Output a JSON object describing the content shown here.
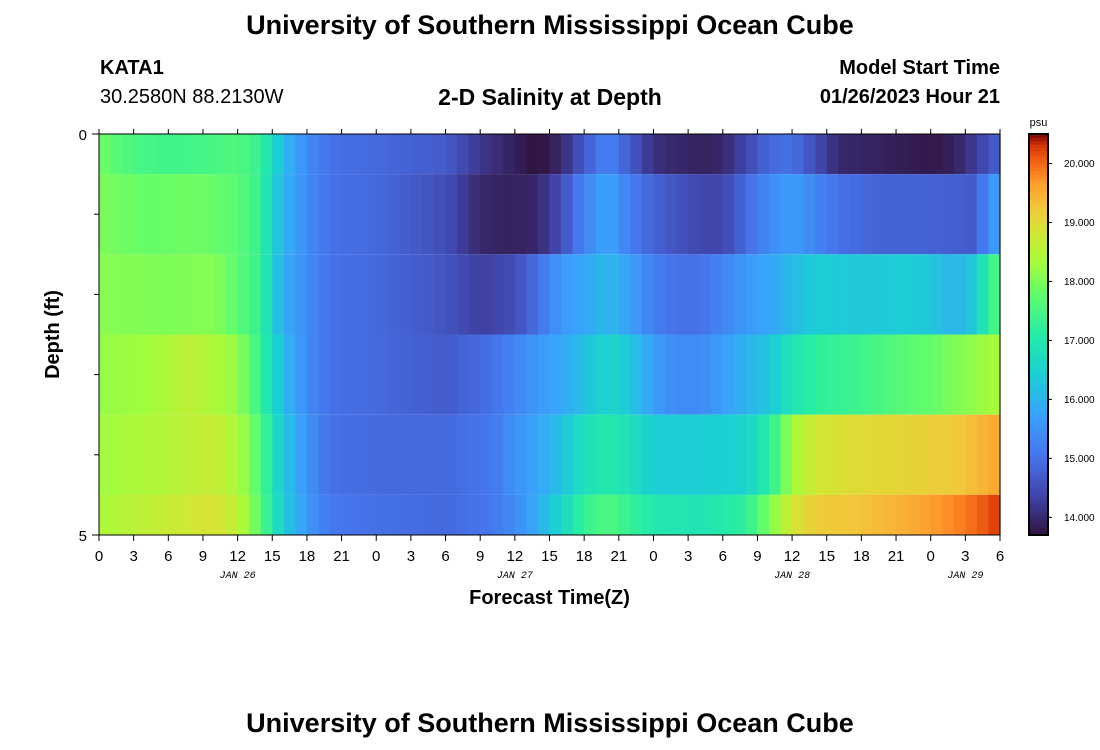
{
  "header": {
    "title": "University of Southern Mississippi Ocean Cube",
    "station_id": "KATA1",
    "station_coords": "30.2580N  88.2130W",
    "chart_subtitle": "2-D Salinity at Depth",
    "model_start_label": "Model Start Time",
    "model_start_value": "01/26/2023 Hour 21"
  },
  "footer": {
    "title": "University of Southern Mississippi Ocean Cube"
  },
  "chart_data": {
    "type": "heatmap",
    "title": "2-D Salinity at Depth",
    "xlabel": "Forecast Time(Z)",
    "ylabel": "Depth (ft)",
    "units": "psu",
    "y_tick_labels": [
      "0",
      "5"
    ],
    "ylim": [
      0,
      5
    ],
    "x_hours_range": [
      0,
      78
    ],
    "x_tick_labels": [
      "0",
      "3",
      "6",
      "9",
      "12",
      "15",
      "18",
      "21",
      "0",
      "3",
      "6",
      "9",
      "12",
      "15",
      "18",
      "21",
      "0",
      "3",
      "6",
      "9",
      "12",
      "15",
      "18",
      "21",
      "0",
      "3",
      "6"
    ],
    "date_labels": [
      {
        "label": "JAN 26",
        "hour": 12
      },
      {
        "label": "JAN 27",
        "hour": 36
      },
      {
        "label": "JAN 28",
        "hour": 60
      },
      {
        "label": "JAN 29",
        "hour": 75
      }
    ],
    "colorbar": {
      "min": 13.7,
      "max": 20.5,
      "ticks": [
        "14.000",
        "15.000",
        "16.000",
        "17.000",
        "18.000",
        "19.000",
        "20.000"
      ]
    },
    "depth_layers": [
      {
        "depth_from": 0.0,
        "depth_to": 0.5,
        "knots": [
          [
            0,
            17.9
          ],
          [
            2,
            17.6
          ],
          [
            6,
            17.4
          ],
          [
            10,
            17.5
          ],
          [
            12,
            17.6
          ],
          [
            14,
            17.3
          ],
          [
            15,
            16.7
          ],
          [
            16,
            16.1
          ],
          [
            18,
            15.4
          ],
          [
            20,
            15.0
          ],
          [
            24,
            14.9
          ],
          [
            30,
            14.7
          ],
          [
            33,
            14.2
          ],
          [
            36,
            13.9
          ],
          [
            38,
            13.7
          ],
          [
            40,
            14.0
          ],
          [
            42,
            14.7
          ],
          [
            44,
            15.3
          ],
          [
            46,
            14.7
          ],
          [
            48,
            14.1
          ],
          [
            52,
            13.9
          ],
          [
            54,
            14.0
          ],
          [
            56,
            14.4
          ],
          [
            58,
            14.9
          ],
          [
            60,
            15.0
          ],
          [
            62,
            14.5
          ],
          [
            64,
            14.0
          ],
          [
            68,
            13.9
          ],
          [
            72,
            13.8
          ],
          [
            74,
            13.9
          ],
          [
            76,
            14.3
          ],
          [
            78,
            14.8
          ]
        ]
      },
      {
        "depth_from": 0.5,
        "depth_to": 1.5,
        "knots": [
          [
            0,
            18.0
          ],
          [
            4,
            17.8
          ],
          [
            8,
            17.9
          ],
          [
            12,
            17.7
          ],
          [
            14,
            17.3
          ],
          [
            15,
            16.5
          ],
          [
            16,
            16.0
          ],
          [
            18,
            15.4
          ],
          [
            20,
            15.0
          ],
          [
            24,
            14.9
          ],
          [
            30,
            14.5
          ],
          [
            33,
            14.0
          ],
          [
            36,
            13.9
          ],
          [
            38,
            14.0
          ],
          [
            40,
            14.5
          ],
          [
            42,
            15.3
          ],
          [
            44,
            15.8
          ],
          [
            46,
            15.2
          ],
          [
            48,
            14.8
          ],
          [
            52,
            14.4
          ],
          [
            54,
            14.4
          ],
          [
            56,
            14.9
          ],
          [
            58,
            15.4
          ],
          [
            60,
            15.7
          ],
          [
            62,
            15.3
          ],
          [
            64,
            15.0
          ],
          [
            68,
            14.8
          ],
          [
            72,
            14.8
          ],
          [
            76,
            14.7
          ],
          [
            77,
            15.5
          ],
          [
            78,
            15.7
          ]
        ]
      },
      {
        "depth_from": 1.5,
        "depth_to": 2.5,
        "knots": [
          [
            0,
            18.1
          ],
          [
            6,
            18.0
          ],
          [
            10,
            18.1
          ],
          [
            12,
            17.7
          ],
          [
            14,
            17.3
          ],
          [
            15,
            16.5
          ],
          [
            16,
            15.9
          ],
          [
            18,
            15.4
          ],
          [
            20,
            15.0
          ],
          [
            24,
            14.9
          ],
          [
            30,
            14.6
          ],
          [
            33,
            14.3
          ],
          [
            36,
            14.5
          ],
          [
            38,
            15.0
          ],
          [
            40,
            15.6
          ],
          [
            42,
            15.8
          ],
          [
            44,
            16.1
          ],
          [
            46,
            15.7
          ],
          [
            48,
            15.2
          ],
          [
            50,
            15.0
          ],
          [
            52,
            15.0
          ],
          [
            54,
            15.3
          ],
          [
            56,
            15.6
          ],
          [
            58,
            15.8
          ],
          [
            60,
            16.1
          ],
          [
            62,
            16.4
          ],
          [
            66,
            16.3
          ],
          [
            70,
            16.4
          ],
          [
            72,
            16.3
          ],
          [
            74,
            16.0
          ],
          [
            76,
            16.4
          ],
          [
            77,
            17.3
          ],
          [
            78,
            17.6
          ]
        ]
      },
      {
        "depth_from": 2.5,
        "depth_to": 3.5,
        "knots": [
          [
            0,
            18.2
          ],
          [
            4,
            18.3
          ],
          [
            8,
            18.6
          ],
          [
            12,
            18.2
          ],
          [
            14,
            17.3
          ],
          [
            15,
            16.7
          ],
          [
            16,
            16.1
          ],
          [
            18,
            15.4
          ],
          [
            20,
            15.0
          ],
          [
            24,
            14.9
          ],
          [
            30,
            14.7
          ],
          [
            34,
            15.0
          ],
          [
            38,
            15.6
          ],
          [
            40,
            15.8
          ],
          [
            42,
            16.2
          ],
          [
            44,
            16.6
          ],
          [
            46,
            16.3
          ],
          [
            48,
            15.7
          ],
          [
            50,
            15.4
          ],
          [
            52,
            15.4
          ],
          [
            54,
            15.7
          ],
          [
            56,
            16.0
          ],
          [
            58,
            16.3
          ],
          [
            60,
            16.9
          ],
          [
            62,
            17.2
          ],
          [
            66,
            17.4
          ],
          [
            70,
            17.7
          ],
          [
            72,
            17.8
          ],
          [
            74,
            18.0
          ],
          [
            76,
            18.2
          ],
          [
            78,
            18.4
          ]
        ]
      },
      {
        "depth_from": 3.5,
        "depth_to": 4.5,
        "knots": [
          [
            0,
            18.3
          ],
          [
            6,
            18.5
          ],
          [
            10,
            18.7
          ],
          [
            12,
            18.4
          ],
          [
            14,
            17.6
          ],
          [
            15,
            16.9
          ],
          [
            16,
            16.3
          ],
          [
            18,
            15.5
          ],
          [
            20,
            15.0
          ],
          [
            24,
            14.9
          ],
          [
            30,
            14.9
          ],
          [
            34,
            15.1
          ],
          [
            36,
            15.5
          ],
          [
            38,
            15.8
          ],
          [
            40,
            16.2
          ],
          [
            42,
            16.8
          ],
          [
            44,
            17.0
          ],
          [
            46,
            16.8
          ],
          [
            48,
            16.4
          ],
          [
            52,
            16.4
          ],
          [
            56,
            16.5
          ],
          [
            58,
            17.1
          ],
          [
            60,
            18.3
          ],
          [
            62,
            18.8
          ],
          [
            66,
            19.0
          ],
          [
            70,
            19.1
          ],
          [
            74,
            19.2
          ],
          [
            76,
            19.4
          ],
          [
            78,
            19.6
          ]
        ]
      },
      {
        "depth_from": 4.5,
        "depth_to": 5.0,
        "knots": [
          [
            0,
            18.4
          ],
          [
            6,
            18.7
          ],
          [
            10,
            18.9
          ],
          [
            12,
            18.6
          ],
          [
            14,
            17.7
          ],
          [
            15,
            17.0
          ],
          [
            16,
            16.4
          ],
          [
            18,
            15.6
          ],
          [
            20,
            15.1
          ],
          [
            24,
            15.0
          ],
          [
            30,
            14.9
          ],
          [
            34,
            15.1
          ],
          [
            36,
            15.4
          ],
          [
            38,
            15.9
          ],
          [
            40,
            16.6
          ],
          [
            42,
            17.3
          ],
          [
            44,
            17.6
          ],
          [
            46,
            17.3
          ],
          [
            48,
            17.0
          ],
          [
            52,
            16.9
          ],
          [
            56,
            17.2
          ],
          [
            58,
            18.0
          ],
          [
            60,
            18.8
          ],
          [
            62,
            19.2
          ],
          [
            66,
            19.3
          ],
          [
            70,
            19.5
          ],
          [
            74,
            19.8
          ],
          [
            76,
            20.0
          ],
          [
            78,
            20.3
          ]
        ]
      }
    ]
  }
}
